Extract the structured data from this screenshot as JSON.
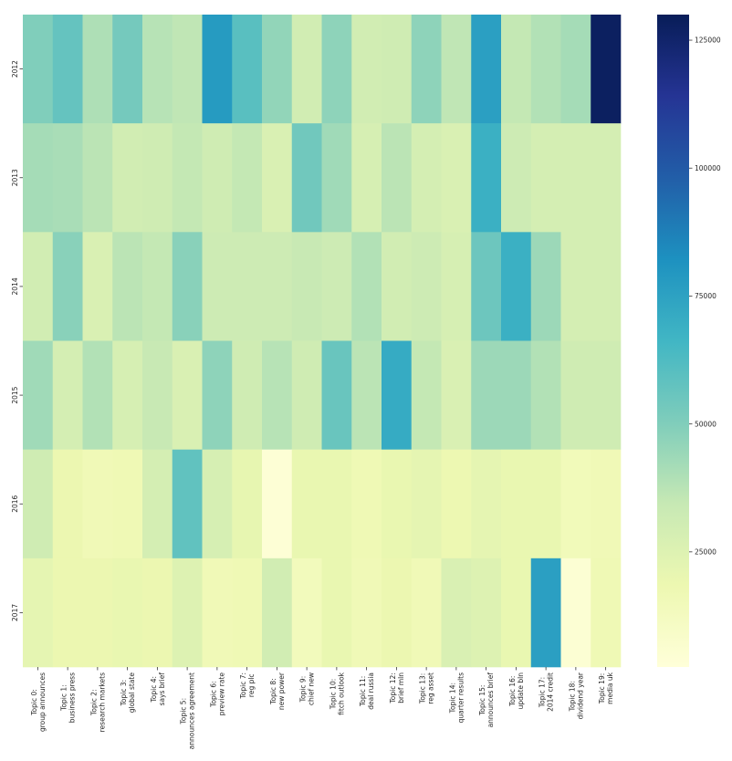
{
  "chart_data": {
    "type": "heatmap",
    "title": "",
    "xlabel": "",
    "ylabel": "",
    "colormap": "YlGnBu",
    "x_labels": [
      [
        "Topic 0:",
        "group announces"
      ],
      [
        "Topic 1:",
        "business press"
      ],
      [
        "Topic 2:",
        "research markets"
      ],
      [
        "Topic 3:",
        "global state"
      ],
      [
        "Topic 4:",
        "says brief"
      ],
      [
        "Topic 5:",
        "announces agreement"
      ],
      [
        "Topic 6:",
        "preview rate"
      ],
      [
        "Topic 7:",
        "reg plc"
      ],
      [
        "Topic 8:",
        "new power"
      ],
      [
        "Topic 9:",
        "chief new"
      ],
      [
        "Topic 10:",
        "fitch outlook"
      ],
      [
        "Topic 11:",
        "deal russia"
      ],
      [
        "Topic 12:",
        "brief mln"
      ],
      [
        "Topic 13:",
        "reg asset"
      ],
      [
        "Topic 14:",
        "quarter results"
      ],
      [
        "Topic 15:",
        "announces brief"
      ],
      [
        "Topic 16:",
        "update bln"
      ],
      [
        "Topic 17:",
        "2014 credit"
      ],
      [
        "Topic 18:",
        "dividend year"
      ],
      [
        "Topic 19:",
        "media uk"
      ]
    ],
    "y_labels": [
      "2012",
      "2013",
      "2014",
      "2015",
      "2016",
      "2017"
    ],
    "values": [
      [
        50000,
        57000,
        40000,
        53000,
        38000,
        36000,
        78000,
        60000,
        46000,
        30000,
        47000,
        30000,
        31000,
        47000,
        36000,
        76000,
        35000,
        39000,
        42000,
        128000
      ],
      [
        42000,
        41000,
        37000,
        30000,
        31000,
        35000,
        31000,
        35000,
        27000,
        54000,
        43000,
        28000,
        37000,
        29000,
        27000,
        69000,
        32000,
        29000,
        29000,
        29000
      ],
      [
        30000,
        48000,
        27000,
        37000,
        35000,
        48000,
        32000,
        32000,
        32000,
        34000,
        32000,
        39000,
        30000,
        32000,
        28000,
        55000,
        69000,
        44000,
        29000,
        29000
      ],
      [
        43000,
        29000,
        39000,
        28000,
        34000,
        27000,
        47000,
        31000,
        38000,
        31000,
        56000,
        37000,
        71000,
        35000,
        27000,
        44000,
        44000,
        39000,
        31000,
        31000
      ],
      [
        31000,
        19000,
        16000,
        17000,
        29000,
        58000,
        28000,
        21000,
        4000,
        20000,
        20000,
        17000,
        20000,
        22000,
        18000,
        22000,
        20000,
        20000,
        15000,
        16000
      ],
      [
        22000,
        19000,
        19000,
        20000,
        19000,
        25000,
        16000,
        17000,
        30000,
        14000,
        20000,
        16000,
        19000,
        16000,
        27000,
        25000,
        20000,
        76000,
        5000,
        17000
      ]
    ],
    "colorbar": {
      "range": [
        2500,
        130000
      ],
      "ticks": [
        25000,
        50000,
        75000,
        100000,
        125000
      ],
      "tick_labels": [
        "25000",
        "50000",
        "75000",
        "100000",
        "125000"
      ]
    }
  }
}
